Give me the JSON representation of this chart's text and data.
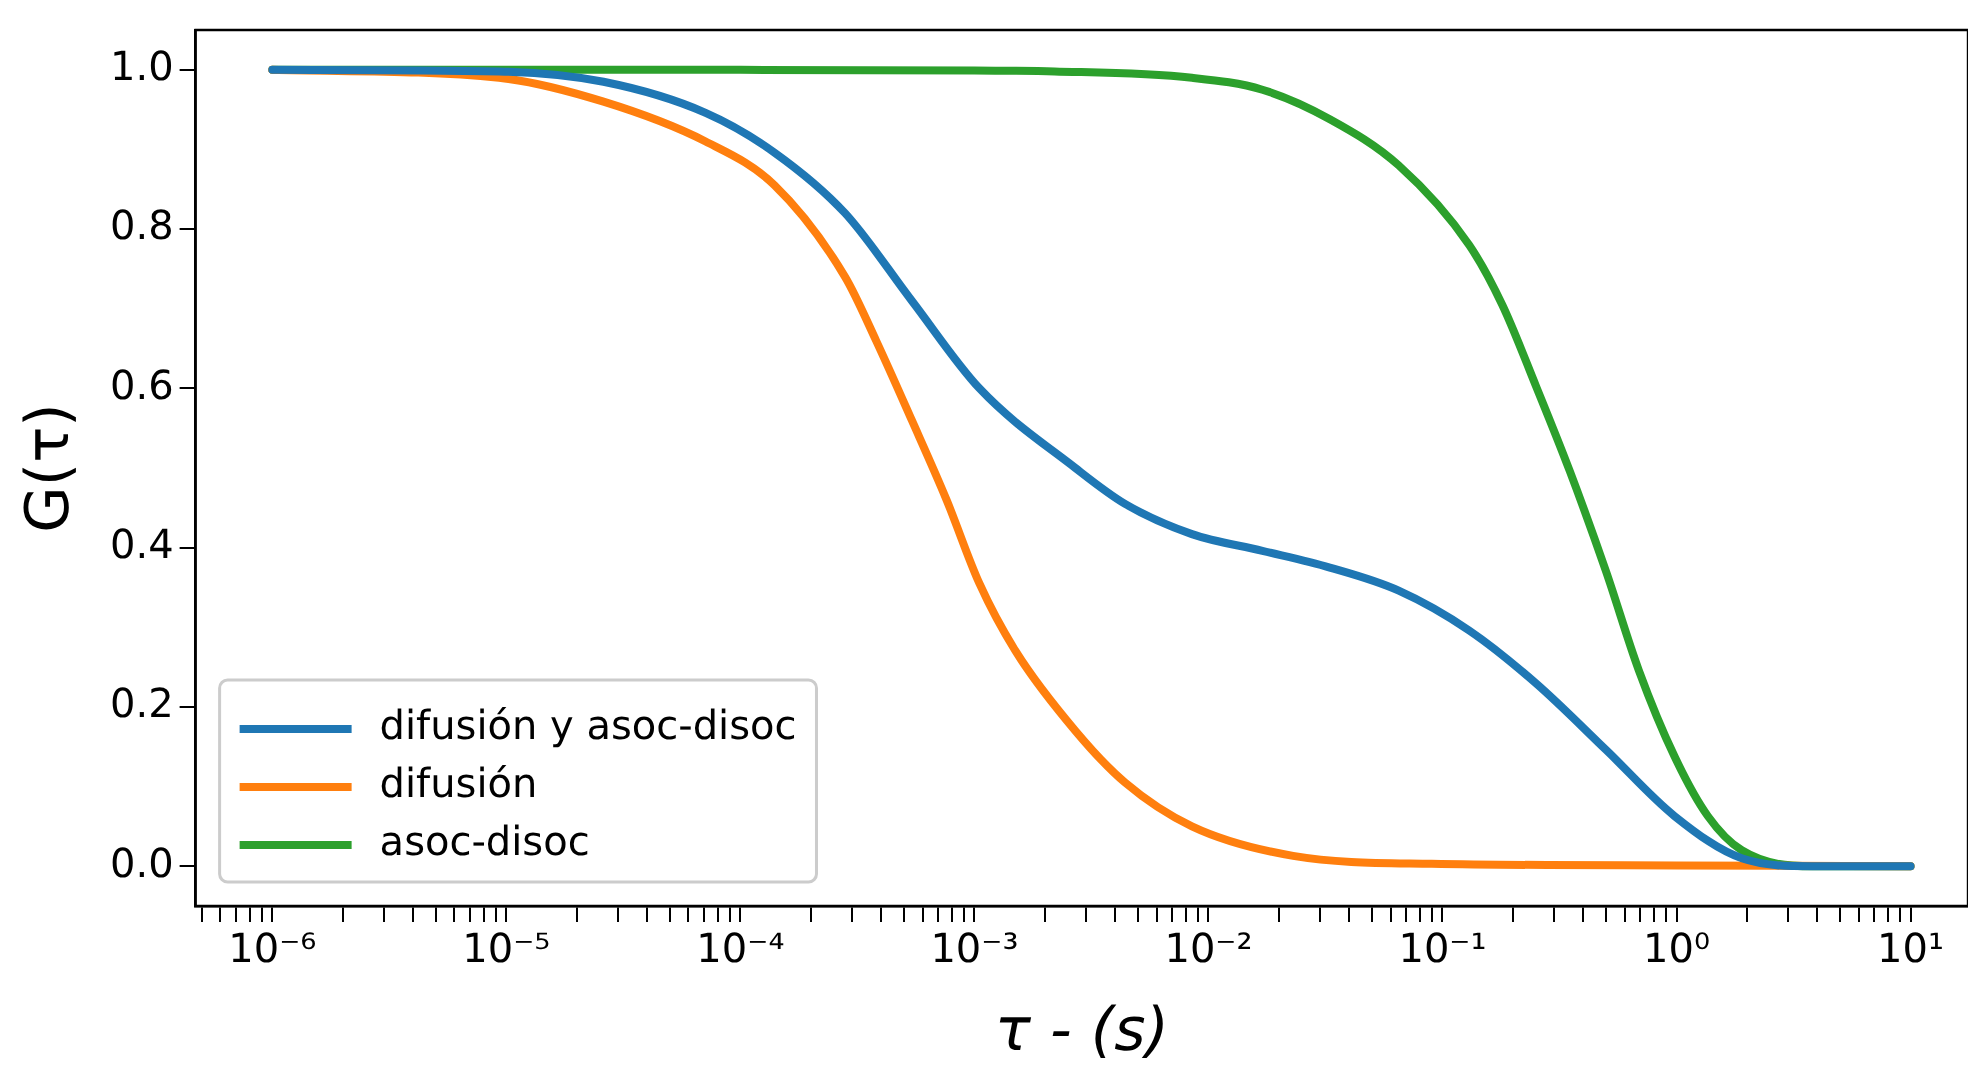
{
  "chart_data": {
    "type": "line",
    "xlabel": "τ - (s)",
    "ylabel": "G(τ)",
    "log": "x",
    "grid": false,
    "legend": "bottom left",
    "marker": "none",
    "line_style": "solid",
    "xlim": [
      4.7e-07,
      17.6
    ],
    "ylim": [
      -0.05,
      1.05
    ],
    "xticks": [
      {
        "value": 5e-07,
        "label": null
      },
      {
        "value": 6e-07,
        "label": null
      },
      {
        "value": 7e-07,
        "label": null
      },
      {
        "value": 8e-07,
        "label": null
      },
      {
        "value": 9e-07,
        "label": null
      },
      {
        "value": 1e-06,
        "label": "10⁻⁶"
      },
      {
        "value": 2e-06,
        "label": null
      },
      {
        "value": 3e-06,
        "label": null
      },
      {
        "value": 4e-06,
        "label": null
      },
      {
        "value": 5e-06,
        "label": null
      },
      {
        "value": 6e-06,
        "label": null
      },
      {
        "value": 7e-06,
        "label": null
      },
      {
        "value": 8e-06,
        "label": null
      },
      {
        "value": 9e-06,
        "label": null
      },
      {
        "value": 1e-05,
        "label": "10⁻⁵"
      },
      {
        "value": 2e-05,
        "label": null
      },
      {
        "value": 3e-05,
        "label": null
      },
      {
        "value": 4e-05,
        "label": null
      },
      {
        "value": 5e-05,
        "label": null
      },
      {
        "value": 6e-05,
        "label": null
      },
      {
        "value": 7e-05,
        "label": null
      },
      {
        "value": 8e-05,
        "label": null
      },
      {
        "value": 9e-05,
        "label": null
      },
      {
        "value": 0.0001,
        "label": "10⁻⁴"
      },
      {
        "value": 0.0002,
        "label": null
      },
      {
        "value": 0.0003,
        "label": null
      },
      {
        "value": 0.0004,
        "label": null
      },
      {
        "value": 0.0005,
        "label": null
      },
      {
        "value": 0.0006,
        "label": null
      },
      {
        "value": 0.0007,
        "label": null
      },
      {
        "value": 0.0008,
        "label": null
      },
      {
        "value": 0.0009,
        "label": null
      },
      {
        "value": 0.001,
        "label": "10⁻³"
      },
      {
        "value": 0.002,
        "label": null
      },
      {
        "value": 0.003,
        "label": null
      },
      {
        "value": 0.004,
        "label": null
      },
      {
        "value": 0.005,
        "label": null
      },
      {
        "value": 0.006,
        "label": null
      },
      {
        "value": 0.007,
        "label": null
      },
      {
        "value": 0.008,
        "label": null
      },
      {
        "value": 0.009,
        "label": null
      },
      {
        "value": 0.01,
        "label": "10⁻²"
      },
      {
        "value": 0.02,
        "label": null
      },
      {
        "value": 0.03,
        "label": null
      },
      {
        "value": 0.04,
        "label": null
      },
      {
        "value": 0.05,
        "label": null
      },
      {
        "value": 0.06,
        "label": null
      },
      {
        "value": 0.07,
        "label": null
      },
      {
        "value": 0.08,
        "label": null
      },
      {
        "value": 0.09,
        "label": null
      },
      {
        "value": 0.1,
        "label": "10⁻¹"
      },
      {
        "value": 0.2,
        "label": null
      },
      {
        "value": 0.3,
        "label": null
      },
      {
        "value": 0.4,
        "label": null
      },
      {
        "value": 0.5,
        "label": null
      },
      {
        "value": 0.6,
        "label": null
      },
      {
        "value": 0.7,
        "label": null
      },
      {
        "value": 0.8,
        "label": null
      },
      {
        "value": 0.9,
        "label": null
      },
      {
        "value": 1,
        "label": "10⁰"
      },
      {
        "value": 2,
        "label": null
      },
      {
        "value": 3,
        "label": null
      },
      {
        "value": 4,
        "label": null
      },
      {
        "value": 5,
        "label": null
      },
      {
        "value": 6,
        "label": null
      },
      {
        "value": 7,
        "label": null
      },
      {
        "value": 8,
        "label": null
      },
      {
        "value": 9,
        "label": null
      },
      {
        "value": 10,
        "label": "10¹"
      }
    ],
    "yticks": [
      {
        "value": 0,
        "label": "0.0"
      },
      {
        "value": 0.2,
        "label": "0.2"
      },
      {
        "value": 0.4,
        "label": "0.4"
      },
      {
        "value": 0.6,
        "label": "0.6"
      },
      {
        "value": 0.8,
        "label": "0.8"
      },
      {
        "value": 1,
        "label": "1.0"
      }
    ],
    "series": [
      {
        "name": "difusión y asoc-disoc",
        "color": "#1f77b4",
        "x": [
          1e-06,
          9.3e-06,
          2.6e-05,
          7.1e-05,
          0.00014,
          0.00028,
          0.00054,
          0.00105,
          0.0027,
          0.0044,
          0.0085,
          0.017,
          0.033,
          0.065,
          0.13,
          0.25,
          0.5,
          0.98,
          1.9,
          3.8,
          10
        ],
        "values": [
          1.0,
          0.998,
          0.985,
          0.946,
          0.896,
          0.82,
          0.71,
          0.6,
          0.5,
          0.455,
          0.417,
          0.396,
          0.375,
          0.346,
          0.296,
          0.23,
          0.146,
          0.063,
          0.01,
          0.0,
          0.0
        ]
      },
      {
        "name": "difusión",
        "color": "#ff7f0e",
        "x": [
          1e-06,
          9.3e-06,
          2.6e-05,
          7.1e-05,
          0.00014,
          0.00028,
          0.00038,
          0.00054,
          0.00076,
          0.00105,
          0.0015,
          0.0027,
          0.0044,
          0.0085,
          0.023,
          0.09,
          1,
          10
        ],
        "values": [
          1.0,
          0.99,
          0.96,
          0.91,
          0.855,
          0.74,
          0.66,
          0.56,
          0.46,
          0.355,
          0.27,
          0.17,
          0.105,
          0.05,
          0.013,
          0.003,
          0.001,
          0.0
        ]
      },
      {
        "name": "asoc-disoc",
        "color": "#2ca02c",
        "x": [
          1e-06,
          1e-05,
          0.0001,
          0.001,
          0.0022,
          0.0085,
          0.017,
          0.033,
          0.065,
          0.13,
          0.18,
          0.25,
          0.35,
          0.5,
          0.69,
          0.98,
          1.36,
          1.9,
          3.8,
          10
        ],
        "values": [
          1.0,
          1.0,
          1.0,
          0.999,
          0.998,
          0.99,
          0.975,
          0.938,
          0.88,
          0.78,
          0.705,
          0.604,
          0.496,
          0.37,
          0.246,
          0.138,
          0.063,
          0.02,
          0.0,
          0.0
        ]
      }
    ]
  }
}
